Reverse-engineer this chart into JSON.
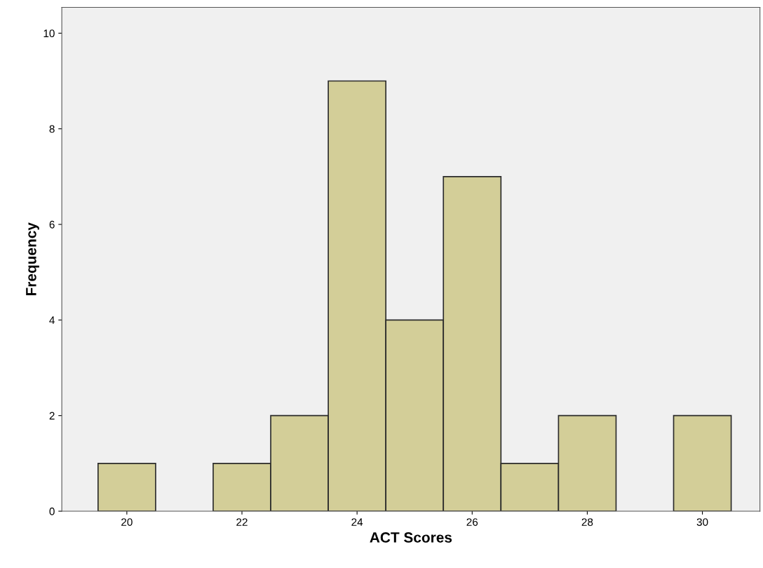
{
  "chart_data": {
    "type": "histogram",
    "xlabel": "ACT Scores",
    "ylabel": "Frequency",
    "bins": [
      19.5,
      20.5,
      21.5,
      22.5,
      23.5,
      24.5,
      25.5,
      26.5,
      27.5,
      28.5,
      29.5,
      30.5
    ],
    "values": [
      1,
      0,
      1,
      2,
      9,
      4,
      7,
      1,
      2,
      0,
      2
    ],
    "color": "#d3ce98",
    "xlim": [
      18.87,
      31.0
    ],
    "xticks": [
      20,
      22,
      24,
      26,
      28,
      30
    ],
    "ylim": [
      0,
      10.54
    ],
    "yticks": [
      0,
      2,
      4,
      6,
      8,
      10
    ],
    "grid": false
  }
}
